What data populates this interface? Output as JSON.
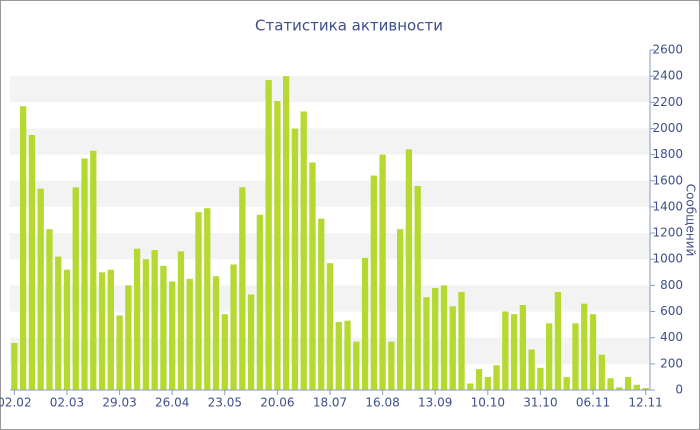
{
  "chart_data": {
    "type": "bar",
    "title": "Статистика активности",
    "y_label": "Сообщений",
    "categories": [
      "02.02",
      null,
      null,
      null,
      null,
      null,
      "02.03",
      null,
      null,
      null,
      null,
      null,
      "29.03",
      null,
      null,
      null,
      null,
      null,
      "26.04",
      null,
      null,
      null,
      null,
      null,
      "23.05",
      null,
      null,
      null,
      null,
      null,
      "20.06",
      null,
      null,
      null,
      null,
      null,
      "18.07",
      null,
      null,
      null,
      null,
      null,
      "16.08",
      null,
      null,
      null,
      null,
      null,
      "13.09",
      null,
      null,
      null,
      null,
      null,
      "10.10",
      null,
      null,
      null,
      null,
      null,
      "31.10",
      null,
      null,
      null,
      null,
      null,
      "06.11",
      null,
      null,
      null,
      null,
      null,
      "12.11"
    ],
    "values": [
      360,
      2170,
      1950,
      1540,
      1230,
      1020,
      920,
      1550,
      1770,
      1830,
      900,
      920,
      570,
      800,
      1080,
      1000,
      1070,
      950,
      830,
      1060,
      850,
      1360,
      1390,
      870,
      580,
      960,
      1550,
      730,
      1340,
      2370,
      2210,
      2400,
      2000,
      2130,
      1740,
      1310,
      970,
      520,
      530,
      370,
      1010,
      1640,
      1800,
      370,
      1230,
      1840,
      1560,
      710,
      780,
      800,
      640,
      750,
      50,
      160,
      100,
      190,
      600,
      580,
      650,
      310,
      170,
      510,
      750,
      100,
      510,
      660,
      580,
      270,
      90,
      20,
      100,
      40,
      15
    ],
    "color": "#b5d930",
    "ylim": [
      0,
      2600
    ],
    "yticks": [
      0,
      200,
      400,
      600,
      800,
      1000,
      1200,
      1400,
      1600,
      1800,
      2000,
      2200,
      2400,
      2600
    ],
    "grid": true
  }
}
